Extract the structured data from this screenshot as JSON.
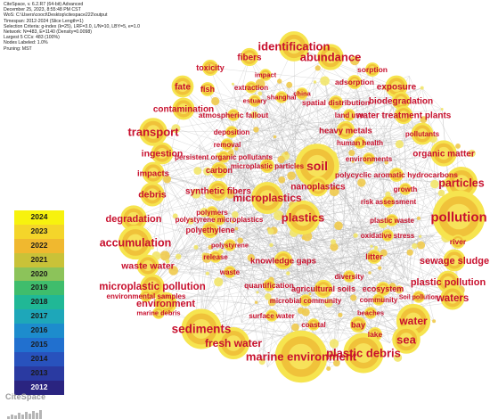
{
  "header": {
    "lines": [
      "CiteSpace, v. 6.2.R7 (64-bit) Advanced",
      "December 25, 2023, 8:55:48 PM CST",
      "WoS: C:\\Users\\cooct\\Desktop\\citespace222\\output",
      "Timespan: 2012-2024 (Slice Length=1)",
      "Selection Criteria: g-index (k=25), LRF=3.0, L/N=10, LBY=5, e=1.0",
      "Network: N=483, E=1140 (Density=0.0098)",
      "Largest 5 CCs: 483 (100%)",
      "Nodes Labeled: 1.0%",
      "Pruning: MST"
    ]
  },
  "legend": [
    {
      "year": "2024",
      "color": "#f7f20e",
      "text_color": "#1a1a1a"
    },
    {
      "year": "2023",
      "color": "#f4d52a",
      "text_color": "#1a1a1a"
    },
    {
      "year": "2022",
      "color": "#f0b82f",
      "text_color": "#1a1a1a"
    },
    {
      "year": "2021",
      "color": "#c9c238",
      "text_color": "#1a1a1a"
    },
    {
      "year": "2020",
      "color": "#8cc35a",
      "text_color": "#1a1a1a"
    },
    {
      "year": "2019",
      "color": "#3fbd6c",
      "text_color": "#1a1a1a"
    },
    {
      "year": "2018",
      "color": "#20b896",
      "text_color": "#1a1a1a"
    },
    {
      "year": "2017",
      "color": "#1ea7b9",
      "text_color": "#1a1a1a"
    },
    {
      "year": "2016",
      "color": "#1d8ccd",
      "text_color": "#1a1a1a"
    },
    {
      "year": "2015",
      "color": "#2170cf",
      "text_color": "#1a1a1a"
    },
    {
      "year": "2014",
      "color": "#2852bd",
      "text_color": "#1a1a1a"
    },
    {
      "year": "2013",
      "color": "#2a3aa1",
      "text_color": "#1a1a1a"
    },
    {
      "year": "2012",
      "color": "#2a2480",
      "text_color": "#ffffff"
    }
  ],
  "logo": {
    "text": "CiteSpace"
  },
  "keywords": [
    "identification",
    "abundance",
    "fibers",
    "toxicity",
    "impact",
    "sorption",
    "extraction",
    "fate",
    "fish",
    "estuary",
    "shanghai",
    "china",
    "adsorption",
    "exposure",
    "spatial distribution",
    "biodegradation",
    "contamination",
    "atmospheric fallout",
    "land use",
    "water treatment plants",
    "transport",
    "deposition",
    "heavy metals",
    "pollutants",
    "human health",
    "removal",
    "organic matter",
    "ingestion",
    "persistent organic pollutants",
    "environments",
    "soil",
    "microplastic particles",
    "carbon",
    "polycyclic aromatic hydrocarbons",
    "impacts",
    "particles",
    "debris",
    "nanoplastics",
    "synthetic fibers",
    "growth",
    "microplastics",
    "polymers",
    "risk assessment",
    "degradation",
    "polystyrene microplastics",
    "plastics",
    "pollution",
    "polyethylene",
    "plastic waste",
    "accumulation",
    "oxidative stress",
    "polystyrene",
    "river",
    "waste water",
    "release",
    "knowledge gaps",
    "litter",
    "sewage sludge",
    "waste",
    "diversity",
    "microplastic pollution",
    "quantification",
    "plastic pollution",
    "environmental samples",
    "agricultural soils",
    "ecosystem",
    "environment",
    "microbial community",
    "community",
    "Soil pollution",
    "waters",
    "marine debris",
    "surface water",
    "beaches",
    "bay",
    "water",
    "sediments",
    "coastal",
    "lake",
    "sea",
    "fresh water",
    "plastic debris",
    "marine environment"
  ]
}
